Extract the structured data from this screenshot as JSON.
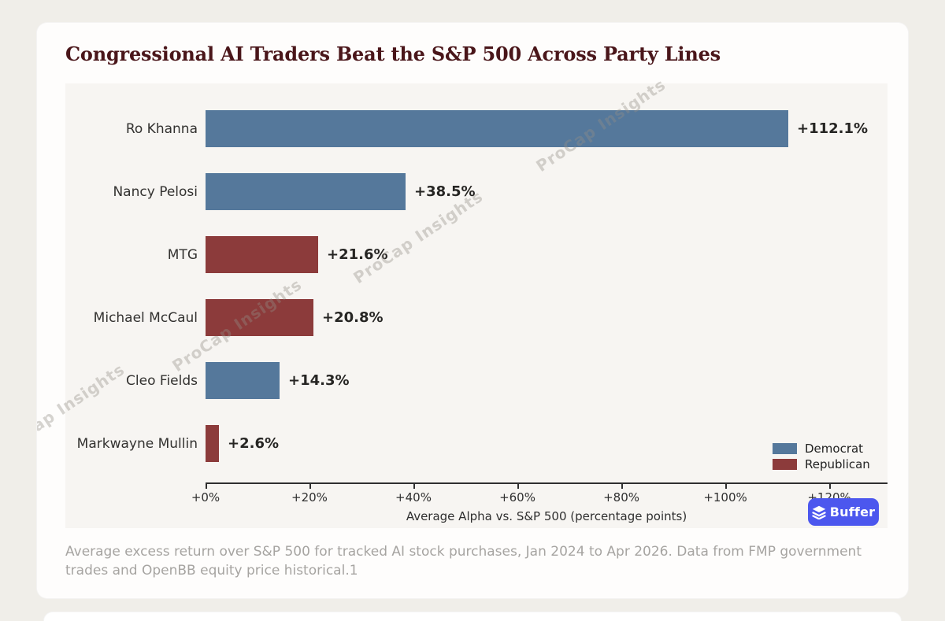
{
  "page": {
    "title": "Congressional AI Traders Beat the S&P 500 Across Party Lines",
    "caption": "Average excess return over S&P 500 for tracked AI stock purchases, Jan 2024 to Apr 2026. Data from FMP government trades and OpenBB equity price historical.1",
    "watermark_text": "ProCap Insights"
  },
  "branding": {
    "buffer_label": "Buffer",
    "buffer_color": "#4C57EE"
  },
  "chart_data": {
    "type": "bar",
    "orientation": "horizontal",
    "title": "Congressional AI Traders Beat the S&P 500 Across Party Lines",
    "categories": [
      "Ro Khanna",
      "Nancy Pelosi",
      "MTG",
      "Michael McCaul",
      "Cleo Fields",
      "Markwayne Mullin"
    ],
    "values": [
      112.1,
      38.5,
      21.6,
      20.8,
      14.3,
      2.6
    ],
    "value_labels": [
      "+112.1%",
      "+38.5%",
      "+21.6%",
      "+20.8%",
      "+14.3%",
      "+2.6%"
    ],
    "parties": [
      "Democrat",
      "Democrat",
      "Republican",
      "Republican",
      "Democrat",
      "Republican"
    ],
    "party_colors": {
      "Democrat": "#55789B",
      "Republican": "#8C3B3B"
    },
    "xlabel": "Average Alpha vs. S&P 500 (percentage points)",
    "xlim": [
      0,
      131.2
    ],
    "x_tick_values": [
      0,
      20,
      40,
      60,
      80,
      100,
      120
    ],
    "x_tick_labels": [
      "+0%",
      "+20%",
      "+40%",
      "+60%",
      "+80%",
      "+100%",
      "+120%"
    ],
    "legend": [
      {
        "label": "Democrat",
        "color": "#55789B"
      },
      {
        "label": "Republican",
        "color": "#8C3B3B"
      }
    ],
    "legend_position": "lower right",
    "grid": false,
    "background": "#F7F5F2"
  }
}
